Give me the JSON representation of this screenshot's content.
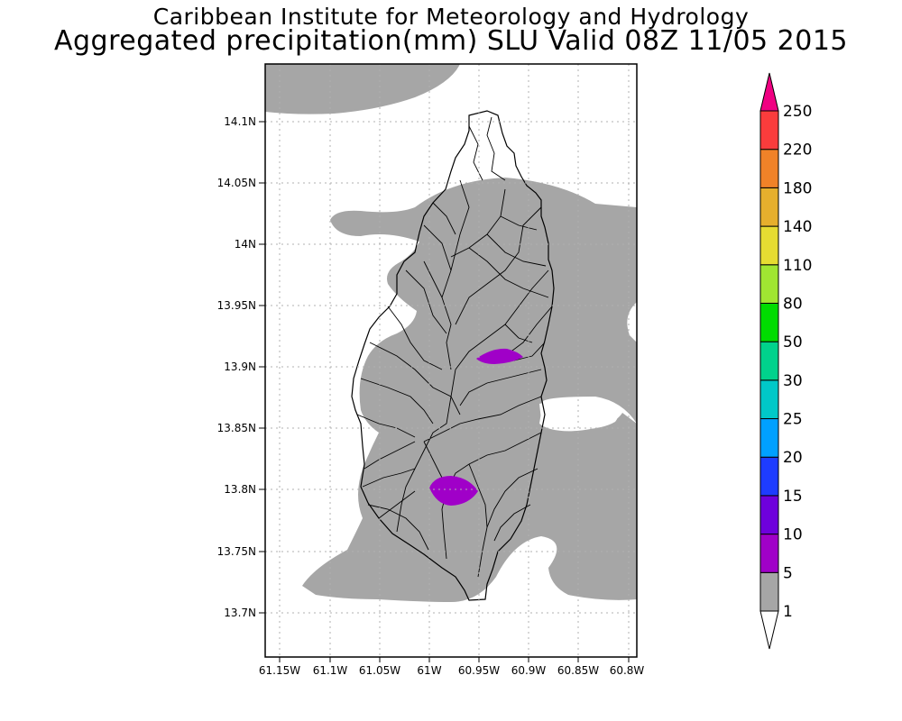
{
  "title": {
    "line1": "Caribbean Institute for Meteorology and Hydrology",
    "line2": "Aggregated precipitation(mm) SLU Valid 08Z 11/05 2015"
  },
  "map": {
    "lat_ticks": [
      "14.1N",
      "14.05N",
      "14N",
      "13.95N",
      "13.9N",
      "13.85N",
      "13.8N",
      "13.75N",
      "13.7N"
    ],
    "lon_ticks": [
      "61.15W",
      "61.1W",
      "61.05W",
      "61W",
      "60.95W",
      "60.9W",
      "60.85W",
      "60.8W"
    ],
    "extent": {
      "lon_min": -61.165,
      "lon_max": -60.79,
      "lat_min": 13.665,
      "lat_max": 14.145
    },
    "colors": {
      "rain_1_5": "#a6a6a6",
      "rain_5_10": "#a000c8",
      "coast": "#000000",
      "grid": "#b0b0b0"
    }
  },
  "colorbar": {
    "labels": [
      "1",
      "5",
      "10",
      "15",
      "20",
      "25",
      "30",
      "50",
      "80",
      "110",
      "140",
      "180",
      "220",
      "250"
    ],
    "colors": [
      "#a6a6a6",
      "#a000c8",
      "#6e00dc",
      "#1e3cff",
      "#00a0ff",
      "#00c8c8",
      "#00d28c",
      "#00dc00",
      "#a0e632",
      "#e6dc32",
      "#e6af2d",
      "#f08228",
      "#fa3c3c",
      "#f00082"
    ]
  }
}
